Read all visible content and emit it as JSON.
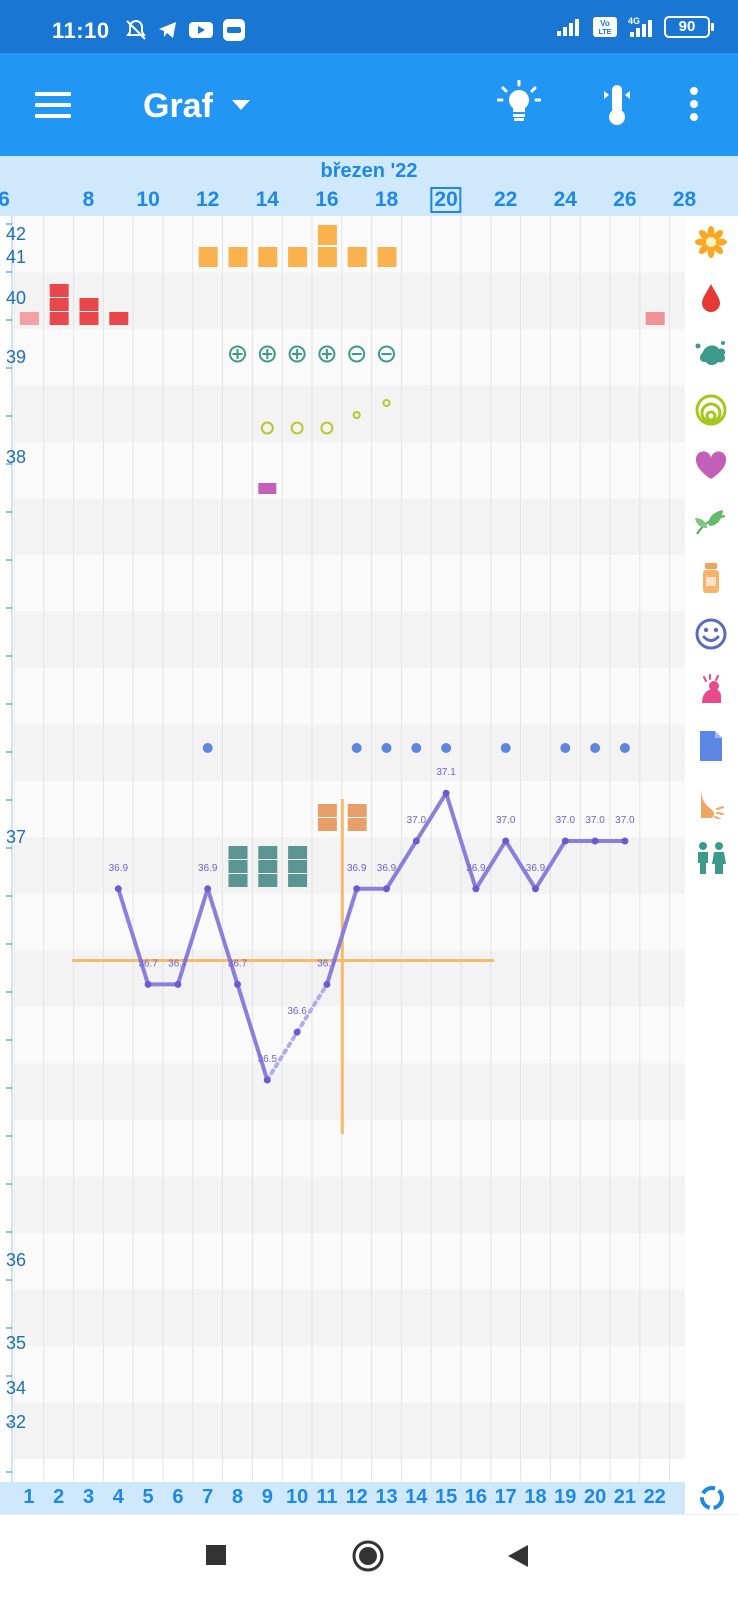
{
  "status_bar": {
    "time": "11:10",
    "battery": "90"
  },
  "app_bar": {
    "title": "Graf",
    "icons": [
      "menu-icon",
      "dropdown-caret-icon",
      "lightbulb-icon",
      "thermometer-icon",
      "more-vert-icon"
    ]
  },
  "chart_header": {
    "month": "březen '22",
    "dates": [
      "6",
      "8",
      "10",
      "12",
      "14",
      "16",
      "18",
      "20",
      "22",
      "24",
      "26",
      "28"
    ],
    "today": "20"
  },
  "cycle_days": [
    "1",
    "2",
    "3",
    "4",
    "5",
    "6",
    "7",
    "8",
    "9",
    "10",
    "11",
    "12",
    "13",
    "14",
    "15",
    "16",
    "17",
    "18",
    "19",
    "20",
    "21",
    "22"
  ],
  "y_axis_labels": [
    "42",
    "41",
    "40",
    "39",
    "38",
    "37",
    "36",
    "35",
    "34",
    "32"
  ],
  "colors": {
    "header_blue": "#2196f3",
    "status_blue": "#1976d2",
    "light_blue": "#cfe8fb",
    "temp_line": "#8b7fdc",
    "coverline": "#f7b96b",
    "bleeding": "#e8474b",
    "cervical_fluid": "#f9b24d",
    "lh_test": "#3d9a8a",
    "cervix": "#b5c92f",
    "intercourse": "#c35fb8",
    "ovulation_pain": "#e8a06a"
  },
  "chart_data": {
    "type": "line",
    "title": "",
    "xlabel": "",
    "ylabel": "",
    "x": [
      4,
      5,
      6,
      7,
      8,
      9,
      10,
      11,
      12,
      13,
      14,
      15,
      16,
      17,
      18,
      19,
      20,
      21
    ],
    "series": [
      {
        "values": [
          36.9,
          36.7,
          36.7,
          36.9,
          36.7,
          36.5,
          36.6,
          36.7,
          36.9,
          36.9,
          37.0,
          37.1,
          36.9,
          37.0,
          36.9,
          37.0,
          37.0,
          37.0
        ],
        "labels": [
          "36.9",
          "36.7",
          "36.7",
          "36.9",
          "36.7",
          "36.5",
          "36.6",
          "36.7",
          "36.9",
          "36.9",
          "37.0",
          "37.1",
          "36.9",
          "37.0",
          "36.9",
          "37.0",
          "37.0",
          "37.0"
        ]
      }
    ],
    "excluded_points": [
      10
    ],
    "coverline": 36.75,
    "ovulation_day": 11.5,
    "rows": {
      "bleeding": {
        "1": 1,
        "2": 3,
        "3": 2,
        "4": 1,
        "22": 1
      },
      "cervical_fluid": {
        "7": 1,
        "8": 1,
        "9": 1,
        "10": 1,
        "11": 2,
        "12": 1,
        "13": 1
      },
      "lh_tests": {
        "8": "+",
        "9": "+",
        "10": "+",
        "11": "+",
        "12": "−",
        "13": "−"
      },
      "cervix": {
        "9": "open",
        "10": "open",
        "11": "open",
        "12": "mid",
        "13": "mid"
      },
      "intercourse": [
        9
      ],
      "notes": [
        7,
        12,
        13,
        14,
        15,
        17,
        19,
        20,
        21
      ],
      "ovulation_tests": {
        "8": 3,
        "9": 3,
        "10": 3
      },
      "pain": {
        "11": 2,
        "12": 2
      }
    }
  },
  "side_icons": [
    "flower-icon",
    "blood-drop-icon",
    "splash-icon",
    "cervix-rings-icon",
    "heart-icon",
    "leaf-icon",
    "medicine-bottle-icon",
    "smiley-icon",
    "pain-icon",
    "note-document-icon",
    "breast-icon",
    "couple-icon"
  ],
  "reload_icon": "refresh-icon"
}
